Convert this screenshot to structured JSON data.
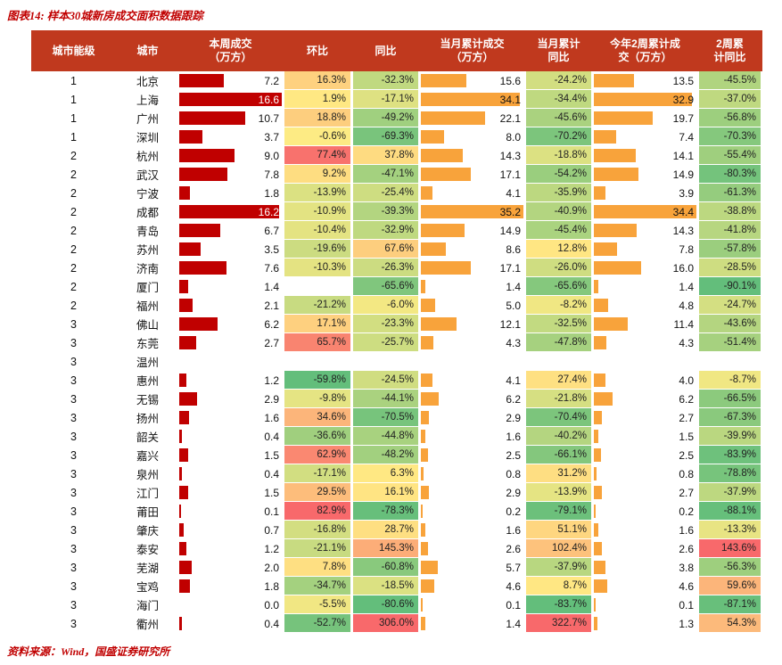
{
  "title": "图表14: 样本30城新房成交面积数据跟踪",
  "source": {
    "label": "资料来源：",
    "text": "Wind，国盛证券研究所"
  },
  "colors": {
    "title": "#C00000",
    "header_bg": "#C0391E",
    "week_bar": "#C00000",
    "cum_bar": "#F8A33B",
    "scale_low": "#63BE7B",
    "scale_mid": "#FFEB84",
    "scale_high": "#F8696B"
  },
  "chart_data": {
    "type": "table",
    "title": "样本30城新房成交面积数据跟踪",
    "headers": {
      "tier": "城市能级",
      "city": "城市",
      "week": "本周成交\n（万方）",
      "wow": "环比",
      "yoy": "同比",
      "mtd": "当月累计成交\n（万方）",
      "mtd_yoy": "当月累计\n同比",
      "ytd": "今年2周累计成\n交（万方）",
      "ytd_yoy": "2周累\n计同比"
    },
    "columns": [
      "城市能级",
      "城市",
      "本周成交（万方）",
      "环比",
      "同比",
      "当月累计成交（万方）",
      "当月累计同比",
      "今年2周累计成交（万方）",
      "2周累计同比"
    ],
    "bar_maxima": {
      "week": 16.6,
      "mtd": 35.2,
      "ytd": 34.4
    },
    "rows": [
      {
        "tier": "1",
        "city": "北京",
        "week": 7.2,
        "wow": 16.3,
        "yoy": -32.3,
        "mtd": 15.6,
        "mtd_yoy": -24.2,
        "ytd": 13.5,
        "ytd_yoy": -45.5
      },
      {
        "tier": "1",
        "city": "上海",
        "week": 16.6,
        "wow": 1.9,
        "yoy": -17.1,
        "mtd": 34.1,
        "mtd_yoy": -34.4,
        "ytd": 32.9,
        "ytd_yoy": -37.0
      },
      {
        "tier": "1",
        "city": "广州",
        "week": 10.7,
        "wow": 18.8,
        "yoy": -49.2,
        "mtd": 22.1,
        "mtd_yoy": -45.6,
        "ytd": 19.7,
        "ytd_yoy": -56.8
      },
      {
        "tier": "1",
        "city": "深圳",
        "week": 3.7,
        "wow": -0.6,
        "yoy": -69.3,
        "mtd": 8.0,
        "mtd_yoy": -70.2,
        "ytd": 7.4,
        "ytd_yoy": -70.3
      },
      {
        "tier": "2",
        "city": "杭州",
        "week": 9.0,
        "wow": 77.4,
        "yoy": 37.8,
        "mtd": 14.3,
        "mtd_yoy": -18.8,
        "ytd": 14.1,
        "ytd_yoy": -55.4
      },
      {
        "tier": "2",
        "city": "武汉",
        "week": 7.8,
        "wow": 9.2,
        "yoy": -47.1,
        "mtd": 17.1,
        "mtd_yoy": -54.2,
        "ytd": 14.9,
        "ytd_yoy": -80.3
      },
      {
        "tier": "2",
        "city": "宁波",
        "week": 1.8,
        "wow": -13.9,
        "yoy": -25.4,
        "mtd": 4.1,
        "mtd_yoy": -35.9,
        "ytd": 3.9,
        "ytd_yoy": -61.3
      },
      {
        "tier": "2",
        "city": "成都",
        "week": 16.2,
        "wow": -10.9,
        "yoy": -39.3,
        "mtd": 35.2,
        "mtd_yoy": -40.9,
        "ytd": 34.4,
        "ytd_yoy": -38.8
      },
      {
        "tier": "2",
        "city": "青岛",
        "week": 6.7,
        "wow": -10.4,
        "yoy": -32.9,
        "mtd": 14.9,
        "mtd_yoy": -45.4,
        "ytd": 14.3,
        "ytd_yoy": -41.8
      },
      {
        "tier": "2",
        "city": "苏州",
        "week": 3.5,
        "wow": -19.6,
        "yoy": 67.6,
        "mtd": 8.6,
        "mtd_yoy": 12.8,
        "ytd": 7.8,
        "ytd_yoy": -57.8
      },
      {
        "tier": "2",
        "city": "济南",
        "week": 7.6,
        "wow": -10.3,
        "yoy": -26.3,
        "mtd": 17.1,
        "mtd_yoy": -26.0,
        "ytd": 16.0,
        "ytd_yoy": -28.5
      },
      {
        "tier": "2",
        "city": "厦门",
        "week": 1.4,
        "wow": null,
        "yoy": -65.6,
        "mtd": 1.4,
        "mtd_yoy": -65.6,
        "ytd": 1.4,
        "ytd_yoy": -90.1
      },
      {
        "tier": "2",
        "city": "福州",
        "week": 2.1,
        "wow": -21.2,
        "yoy": -6.0,
        "mtd": 5.0,
        "mtd_yoy": -8.2,
        "ytd": 4.8,
        "ytd_yoy": -24.7
      },
      {
        "tier": "3",
        "city": "佛山",
        "week": 6.2,
        "wow": 17.1,
        "yoy": -23.3,
        "mtd": 12.1,
        "mtd_yoy": -32.5,
        "ytd": 11.4,
        "ytd_yoy": -43.6
      },
      {
        "tier": "3",
        "city": "东莞",
        "week": 2.7,
        "wow": 65.7,
        "yoy": -25.7,
        "mtd": 4.3,
        "mtd_yoy": -47.8,
        "ytd": 4.3,
        "ytd_yoy": -51.4
      },
      {
        "tier": "3",
        "city": "温州",
        "week": null,
        "wow": null,
        "yoy": null,
        "mtd": null,
        "mtd_yoy": null,
        "ytd": null,
        "ytd_yoy": null
      },
      {
        "tier": "3",
        "city": "惠州",
        "week": 1.2,
        "wow": -59.8,
        "yoy": -24.5,
        "mtd": 4.1,
        "mtd_yoy": 27.4,
        "ytd": 4.0,
        "ytd_yoy": -8.7
      },
      {
        "tier": "3",
        "city": "无锡",
        "week": 2.9,
        "wow": -9.8,
        "yoy": -44.1,
        "mtd": 6.2,
        "mtd_yoy": -21.8,
        "ytd": 6.2,
        "ytd_yoy": -66.5
      },
      {
        "tier": "3",
        "city": "扬州",
        "week": 1.6,
        "wow": 34.6,
        "yoy": -70.5,
        "mtd": 2.9,
        "mtd_yoy": -70.4,
        "ytd": 2.7,
        "ytd_yoy": -67.3
      },
      {
        "tier": "3",
        "city": "韶关",
        "week": 0.4,
        "wow": -36.6,
        "yoy": -44.8,
        "mtd": 1.6,
        "mtd_yoy": -40.2,
        "ytd": 1.5,
        "ytd_yoy": -39.9
      },
      {
        "tier": "3",
        "city": "嘉兴",
        "week": 1.5,
        "wow": 62.9,
        "yoy": -48.2,
        "mtd": 2.5,
        "mtd_yoy": -66.1,
        "ytd": 2.5,
        "ytd_yoy": -83.9
      },
      {
        "tier": "3",
        "city": "泉州",
        "week": 0.4,
        "wow": -17.1,
        "yoy": 6.3,
        "mtd": 0.8,
        "mtd_yoy": 31.2,
        "ytd": 0.8,
        "ytd_yoy": -78.8
      },
      {
        "tier": "3",
        "city": "江门",
        "week": 1.5,
        "wow": 29.5,
        "yoy": 16.1,
        "mtd": 2.9,
        "mtd_yoy": -13.9,
        "ytd": 2.7,
        "ytd_yoy": -37.9
      },
      {
        "tier": "3",
        "city": "莆田",
        "week": 0.1,
        "wow": 82.9,
        "yoy": -78.3,
        "mtd": 0.2,
        "mtd_yoy": -79.1,
        "ytd": 0.2,
        "ytd_yoy": -88.1
      },
      {
        "tier": "3",
        "city": "肇庆",
        "week": 0.7,
        "wow": -16.8,
        "yoy": 28.7,
        "mtd": 1.6,
        "mtd_yoy": 51.1,
        "ytd": 1.6,
        "ytd_yoy": -13.3
      },
      {
        "tier": "3",
        "city": "泰安",
        "week": 1.2,
        "wow": -21.1,
        "yoy": 145.3,
        "mtd": 2.6,
        "mtd_yoy": 102.4,
        "ytd": 2.6,
        "ytd_yoy": 143.6
      },
      {
        "tier": "3",
        "city": "芜湖",
        "week": 2.0,
        "wow": 7.8,
        "yoy": -60.8,
        "mtd": 5.7,
        "mtd_yoy": -37.9,
        "ytd": 3.8,
        "ytd_yoy": -56.3
      },
      {
        "tier": "3",
        "city": "宝鸡",
        "week": 1.8,
        "wow": -34.7,
        "yoy": -18.5,
        "mtd": 4.6,
        "mtd_yoy": 8.7,
        "ytd": 4.6,
        "ytd_yoy": 59.6
      },
      {
        "tier": "3",
        "city": "海门",
        "week": 0.0,
        "wow": -5.5,
        "yoy": -80.6,
        "mtd": 0.1,
        "mtd_yoy": -83.7,
        "ytd": 0.1,
        "ytd_yoy": -87.1
      },
      {
        "tier": "3",
        "city": "衢州",
        "week": 0.4,
        "wow": -52.7,
        "yoy": 306.0,
        "mtd": 1.4,
        "mtd_yoy": 322.7,
        "ytd": 1.3,
        "ytd_yoy": 54.3
      }
    ]
  }
}
